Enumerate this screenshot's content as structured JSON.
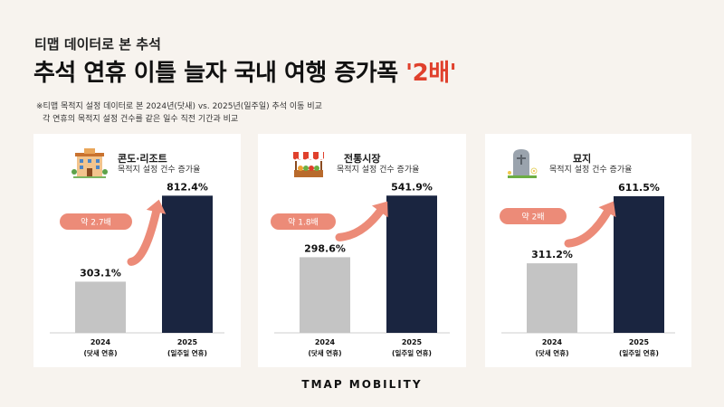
{
  "header": {
    "subtitle": "티맵 데이터로 본 추석",
    "title_main": "추석 연휴 이틀 늘자 국내 여행 증가폭 ",
    "title_accent": "'2배'",
    "note_line1": "※티맵 목적지 설정 데이터로 본 2024년(닷새) vs. 2025년(일주일) 추석 이동 비교",
    "note_line2": "각 연휴의 목적지 설정 건수를 같은 일수 직전 기간과 비교"
  },
  "colors": {
    "bar_2024": "#c4c4c4",
    "bar_2025": "#1a2540",
    "multiplier": "#ec8b78",
    "accent": "#e0402c",
    "background": "#f7f3ee"
  },
  "chart_data": [
    {
      "type": "bar",
      "title": "콘도·리조트",
      "description": "목적지 설정 건수 증가율",
      "icon": "resort-building-icon",
      "categories": [
        "2024",
        "2025"
      ],
      "category_sublabels": [
        "(닷새 연휴)",
        "(일주일 연휴)"
      ],
      "values": [
        303.1,
        812.4
      ],
      "value_labels": [
        "303.1%",
        "812.4%"
      ],
      "multiplier_label": "약  2.7배",
      "ylim": [
        0,
        900
      ]
    },
    {
      "type": "bar",
      "title": "전통시장",
      "description": "목적지 설정 건수 증가율",
      "icon": "market-stall-icon",
      "categories": [
        "2024",
        "2025"
      ],
      "category_sublabels": [
        "(닷새 연휴)",
        "(일주일 연휴)"
      ],
      "values": [
        298.6,
        541.9
      ],
      "value_labels": [
        "298.6%",
        "541.9%"
      ],
      "multiplier_label": "약 1.8배",
      "ylim": [
        0,
        600
      ]
    },
    {
      "type": "bar",
      "title": "묘지",
      "description": "목적지 설정 건수 증가율",
      "icon": "gravestone-icon",
      "categories": [
        "2024",
        "2025"
      ],
      "category_sublabels": [
        "(닷새 연휴)",
        "(일주일 연휴)"
      ],
      "values": [
        311.2,
        611.5
      ],
      "value_labels": [
        "311.2%",
        "611.5%"
      ],
      "multiplier_label": "약 2배",
      "ylim": [
        0,
        680
      ]
    }
  ],
  "footer": {
    "logo": "TMAP MOBILITY"
  }
}
